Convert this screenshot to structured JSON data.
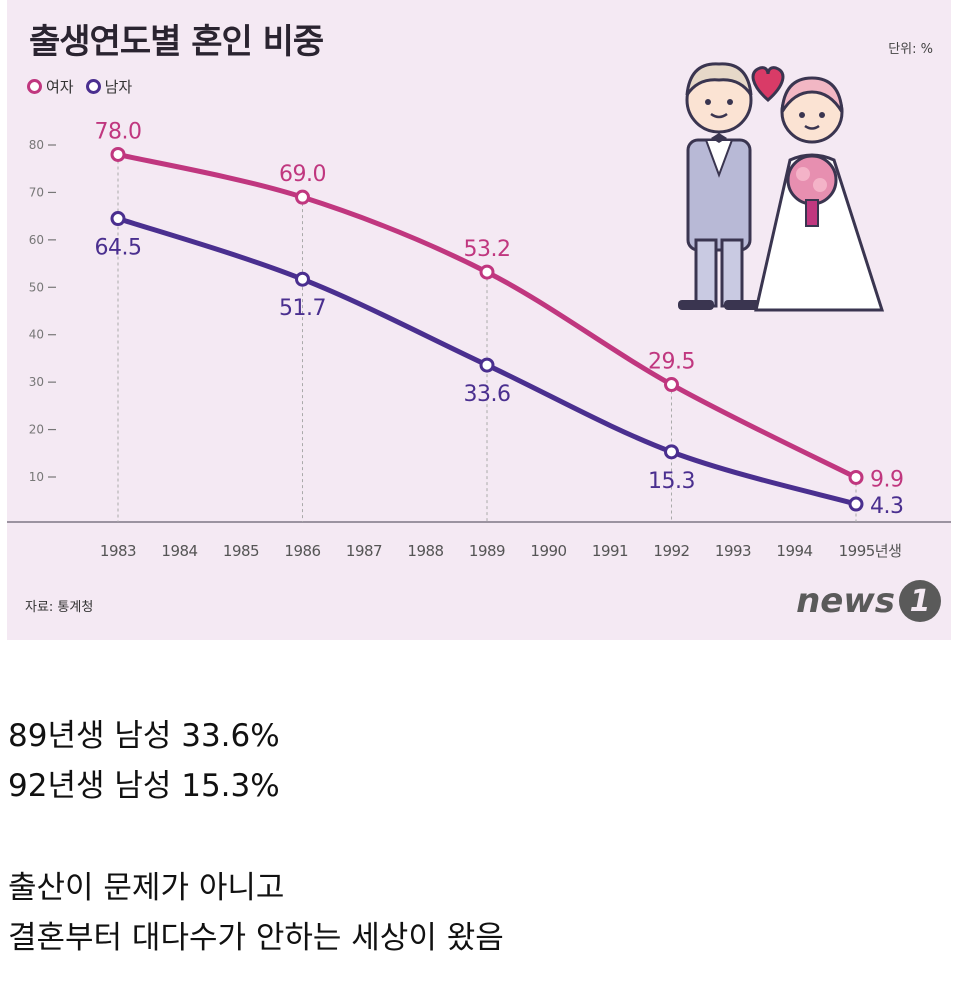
{
  "chart_data": {
    "type": "line",
    "title": "출생연도별 혼인 비중",
    "unit_label": "단위: %",
    "source": "자료: 통계청",
    "logo_text": "news",
    "logo_mark": "1",
    "x": [
      "1983",
      "1984",
      "1985",
      "1986",
      "1987",
      "1988",
      "1989",
      "1990",
      "1991",
      "1992",
      "1993",
      "1994",
      "1995년생"
    ],
    "yticks": [
      10,
      20,
      30,
      40,
      50,
      60,
      70,
      80
    ],
    "ylim": [
      0,
      83
    ],
    "grid": false,
    "legend_position": "top-left",
    "series": [
      {
        "name": "여자",
        "color": "#c0377f",
        "points": [
          {
            "x": "1983",
            "y": 78.0,
            "label": "78.0"
          },
          {
            "x": "1986",
            "y": 69.0,
            "label": "69.0"
          },
          {
            "x": "1989",
            "y": 53.2,
            "label": "53.2"
          },
          {
            "x": "1992",
            "y": 29.5,
            "label": "29.5"
          },
          {
            "x": "1995년생",
            "y": 9.9,
            "label": "9.9"
          }
        ]
      },
      {
        "name": "남자",
        "color": "#4a2f8f",
        "points": [
          {
            "x": "1983",
            "y": 64.5,
            "label": "64.5"
          },
          {
            "x": "1986",
            "y": 51.7,
            "label": "51.7"
          },
          {
            "x": "1989",
            "y": 33.6,
            "label": "33.6"
          },
          {
            "x": "1992",
            "y": 15.3,
            "label": "15.3"
          },
          {
            "x": "1995년생",
            "y": 4.3,
            "label": "4.3"
          }
        ]
      }
    ]
  },
  "captions": [
    "89년생 남성 33.6%",
    "92년생 남성 15.3%",
    "출산이 문제가 아니고",
    "결혼부터 대다수가 안하는 세상이 왔음"
  ]
}
